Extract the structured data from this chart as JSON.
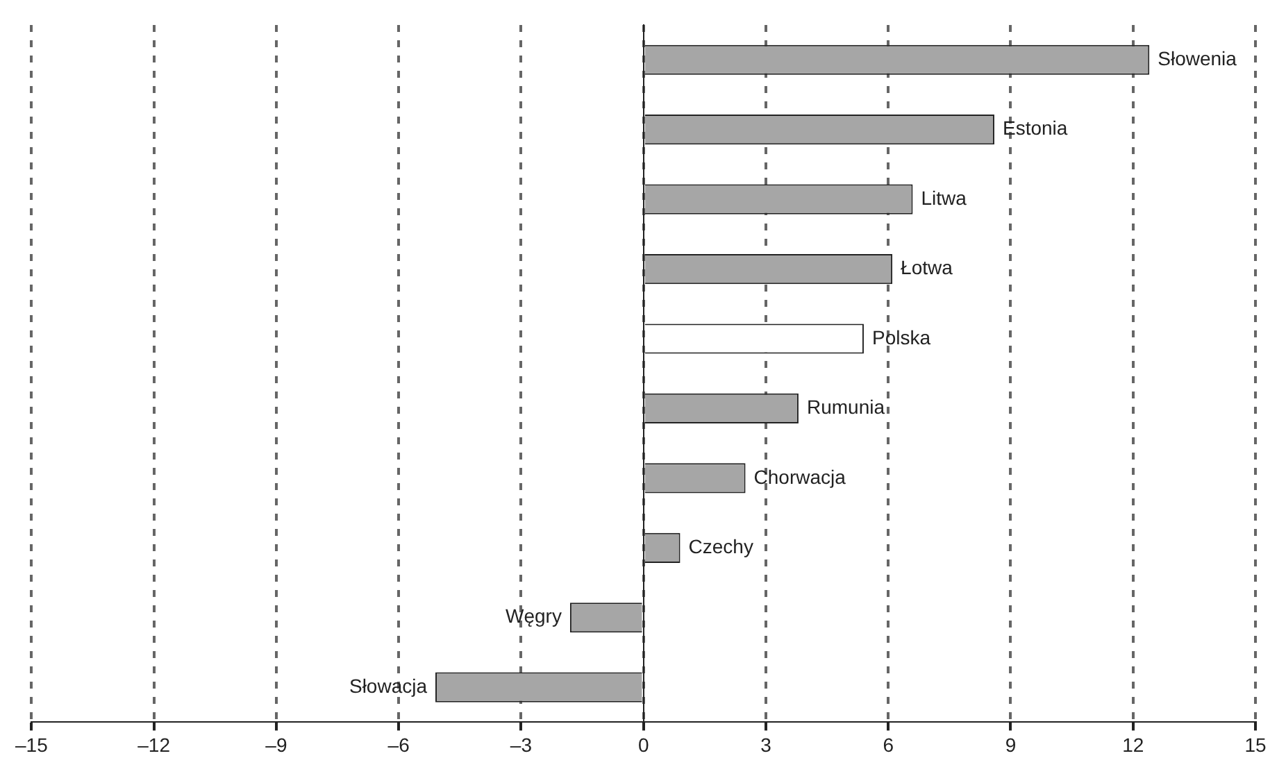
{
  "chart_data": {
    "type": "bar",
    "orientation": "horizontal",
    "categories": [
      "Słowenia",
      "Estonia",
      "Litwa",
      "Łotwa",
      "Polska",
      "Rumunia",
      "Chorwacja",
      "Czechy",
      "Węgry",
      "Słowacja"
    ],
    "values": [
      12.4,
      8.6,
      6.6,
      6.1,
      5.4,
      3.8,
      2.5,
      0.9,
      -1.8,
      -5.1
    ],
    "colors": [
      "#a6a6a6",
      "#a6a6a6",
      "#a6a6a6",
      "#a6a6a6",
      "#ffffff",
      "#a6a6a6",
      "#a6a6a6",
      "#a6a6a6",
      "#a6a6a6",
      "#a6a6a6"
    ],
    "xlim": [
      -15,
      15
    ],
    "xticks": [
      {
        "value": -15,
        "label": "–15"
      },
      {
        "value": -12,
        "label": "–12"
      },
      {
        "value": -9,
        "label": "–9"
      },
      {
        "value": -6,
        "label": "–6"
      },
      {
        "value": -3,
        "label": "–3"
      },
      0,
      3,
      6,
      9,
      12,
      15
    ],
    "grid": "x",
    "legend": false
  }
}
